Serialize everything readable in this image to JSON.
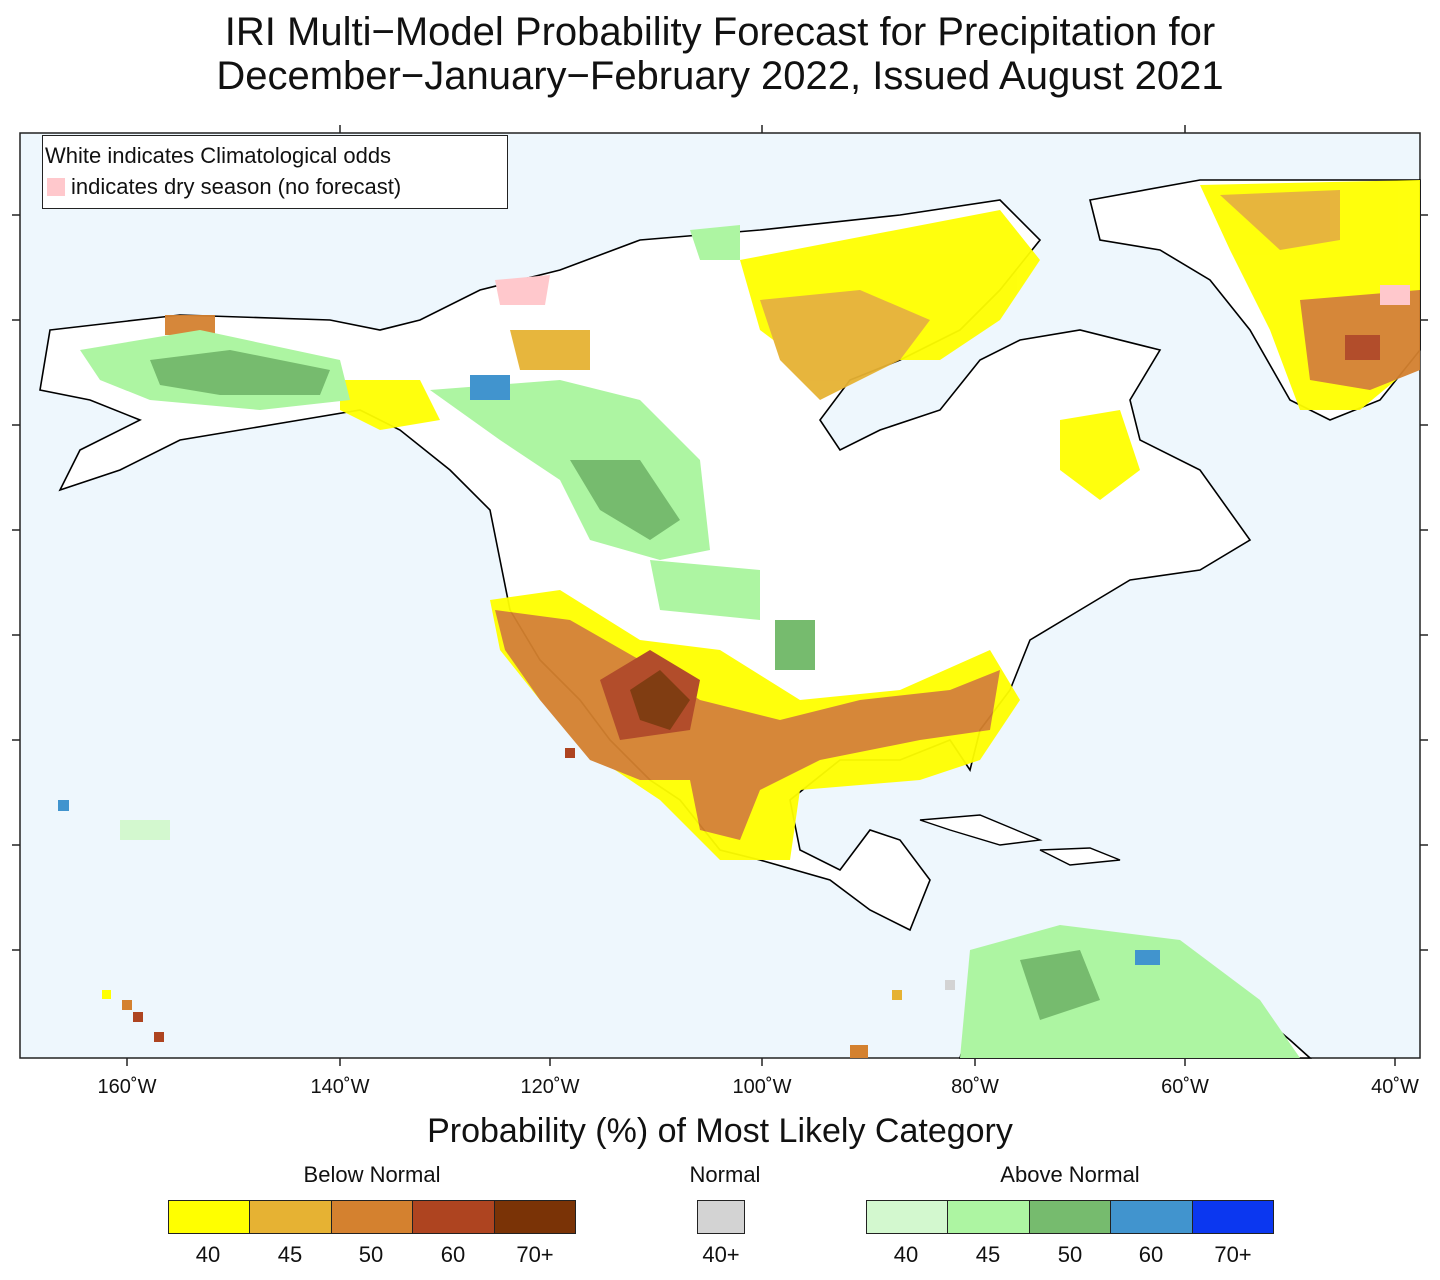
{
  "title": {
    "line1": "IRI Multi−Model Probability Forecast for Precipitation for",
    "line2": "December−January−February 2022, Issued August 2021"
  },
  "map_note": {
    "line1": "White indicates Climatological odds",
    "line2": "indicates dry season (no forecast)",
    "dry_color": "#ffc8cc"
  },
  "x_axis": {
    "ticks": [
      "160˚W",
      "140˚W",
      "120˚W",
      "100˚W",
      "80˚W",
      "60˚W",
      "40˚W"
    ]
  },
  "colorbar": {
    "title": "Probability (%) of Most Likely Category",
    "below": {
      "label": "Below Normal",
      "ticks": [
        "40",
        "45",
        "50",
        "60",
        "70+"
      ],
      "colors": [
        "#ffff00",
        "#e6b233",
        "#d4812f",
        "#ae4420",
        "#7a3306"
      ]
    },
    "normal": {
      "label": "Normal",
      "ticks": [
        "40+"
      ],
      "colors": [
        "#d3d3d3"
      ]
    },
    "above": {
      "label": "Above Normal",
      "ticks": [
        "40",
        "45",
        "50",
        "60",
        "70+"
      ],
      "colors": [
        "#d3f8cf",
        "#adf5a2",
        "#76bb6e",
        "#4194ce",
        "#0b37f0"
      ]
    }
  },
  "colors": {
    "ocean": "#eef7fd",
    "land": "#ffffff"
  }
}
